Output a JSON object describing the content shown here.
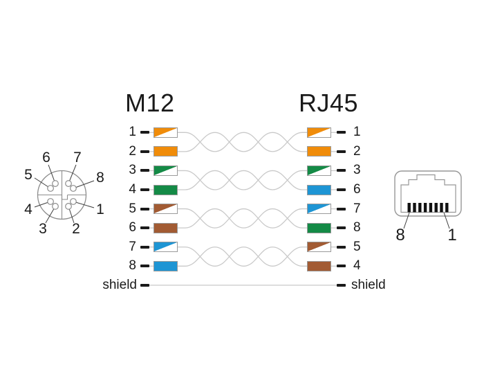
{
  "titles": {
    "left": "M12",
    "right": "RJ45"
  },
  "colors": {
    "orange": "#F08C0A",
    "green": "#148A46",
    "brown": "#A25B33",
    "blue": "#1E95D4",
    "wire_gray": "#C9C9C9",
    "outline_gray": "#8C8C8C",
    "text": "#1A1A1A",
    "contact_black": "#111111"
  },
  "rows": [
    {
      "m12": "1",
      "rj45": "1",
      "left": {
        "color": "orange",
        "striped": true
      },
      "right": {
        "color": "orange",
        "striped": true
      }
    },
    {
      "m12": "2",
      "rj45": "2",
      "left": {
        "color": "orange",
        "striped": false
      },
      "right": {
        "color": "orange",
        "striped": false
      }
    },
    {
      "m12": "3",
      "rj45": "3",
      "left": {
        "color": "green",
        "striped": true
      },
      "right": {
        "color": "green",
        "striped": true
      }
    },
    {
      "m12": "4",
      "rj45": "6",
      "left": {
        "color": "green",
        "striped": false
      },
      "right": {
        "color": "blue",
        "striped": false
      }
    },
    {
      "m12": "5",
      "rj45": "7",
      "left": {
        "color": "brown",
        "striped": true
      },
      "right": {
        "color": "blue",
        "striped": true
      }
    },
    {
      "m12": "6",
      "rj45": "8",
      "left": {
        "color": "brown",
        "striped": false
      },
      "right": {
        "color": "green",
        "striped": false
      }
    },
    {
      "m12": "7",
      "rj45": "5",
      "left": {
        "color": "blue",
        "striped": true
      },
      "right": {
        "color": "brown",
        "striped": true
      }
    },
    {
      "m12": "8",
      "rj45": "4",
      "left": {
        "color": "blue",
        "striped": false
      },
      "right": {
        "color": "brown",
        "striped": false
      }
    }
  ],
  "shield": {
    "left_label": "shield",
    "right_label": "shield"
  },
  "m12_face": {
    "pin_labels": [
      "1",
      "2",
      "3",
      "4",
      "5",
      "6",
      "7",
      "8"
    ]
  },
  "rj45_face": {
    "pin_labels": [
      "8",
      "1"
    ]
  }
}
